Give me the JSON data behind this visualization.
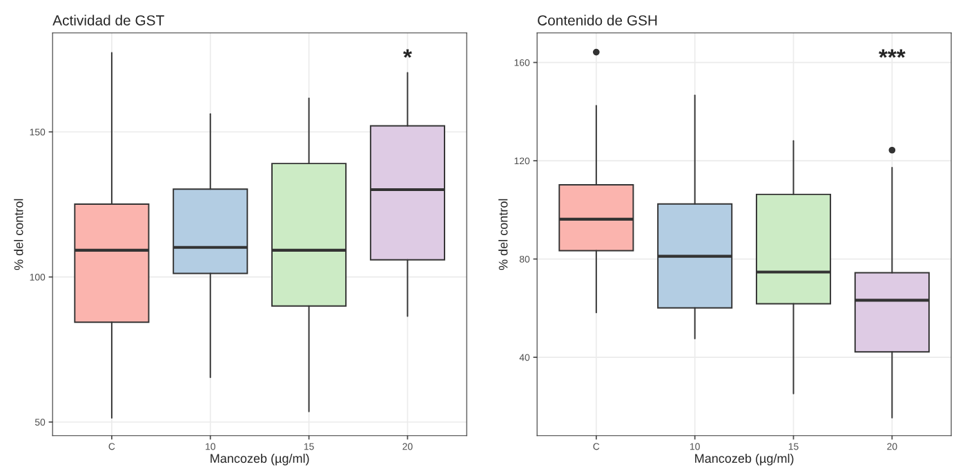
{
  "chart_data": [
    {
      "type": "box",
      "title": "Actividad de GST",
      "xlabel": "Mancozeb (µg/ml)",
      "ylabel": "% del control",
      "categories": [
        "C",
        "10",
        "15",
        "20"
      ],
      "colors": [
        "#fbb4ae",
        "#b3cde3",
        "#ccebc5",
        "#decbe4"
      ],
      "boxes": [
        {
          "low": 51.4,
          "q1": 84.4,
          "median": 109.2,
          "q3": 125.1,
          "high": 177.3
        },
        {
          "low": 65.4,
          "q1": 101.2,
          "median": 110.2,
          "q3": 130.3,
          "high": 156.2
        },
        {
          "low": 53.6,
          "q1": 90.0,
          "median": 109.2,
          "q3": 139.1,
          "high": 161.6
        },
        {
          "low": 86.5,
          "q1": 105.9,
          "median": 130.1,
          "q3": 152.1,
          "high": 170.4
        }
      ],
      "ylim": [
        45.3,
        184.1
      ],
      "yticks": [
        50,
        100,
        150
      ],
      "grid": true,
      "legend": false,
      "annotations": [
        "*"
      ]
    },
    {
      "type": "box",
      "title": "Contenido de GSH",
      "xlabel": "Mancozeb (µg/ml)",
      "ylabel": "% del control",
      "categories": [
        "C",
        "10",
        "15",
        "20"
      ],
      "colors": [
        "#fbb4ae",
        "#b3cde3",
        "#ccebc5",
        "#decbe4"
      ],
      "boxes": [
        {
          "low": 58.2,
          "q1": 83.4,
          "median": 96.2,
          "q3": 110.2,
          "high": 142.4,
          "outliers": [
            164.2
          ]
        },
        {
          "low": 47.6,
          "q1": 60.1,
          "median": 81.1,
          "q3": 102.4,
          "high": 146.6
        },
        {
          "low": 25.2,
          "q1": 61.8,
          "median": 74.7,
          "q3": 106.3,
          "high": 128.1
        },
        {
          "low": 15.4,
          "q1": 42.2,
          "median": 63.2,
          "q3": 74.4,
          "high": 117.2,
          "outliers": [
            124.3
          ]
        }
      ],
      "ylim": [
        8.1,
        172.0
      ],
      "yticks": [
        40,
        80,
        120,
        160
      ],
      "grid": true,
      "legend": false,
      "annotations": [
        "***"
      ]
    }
  ]
}
